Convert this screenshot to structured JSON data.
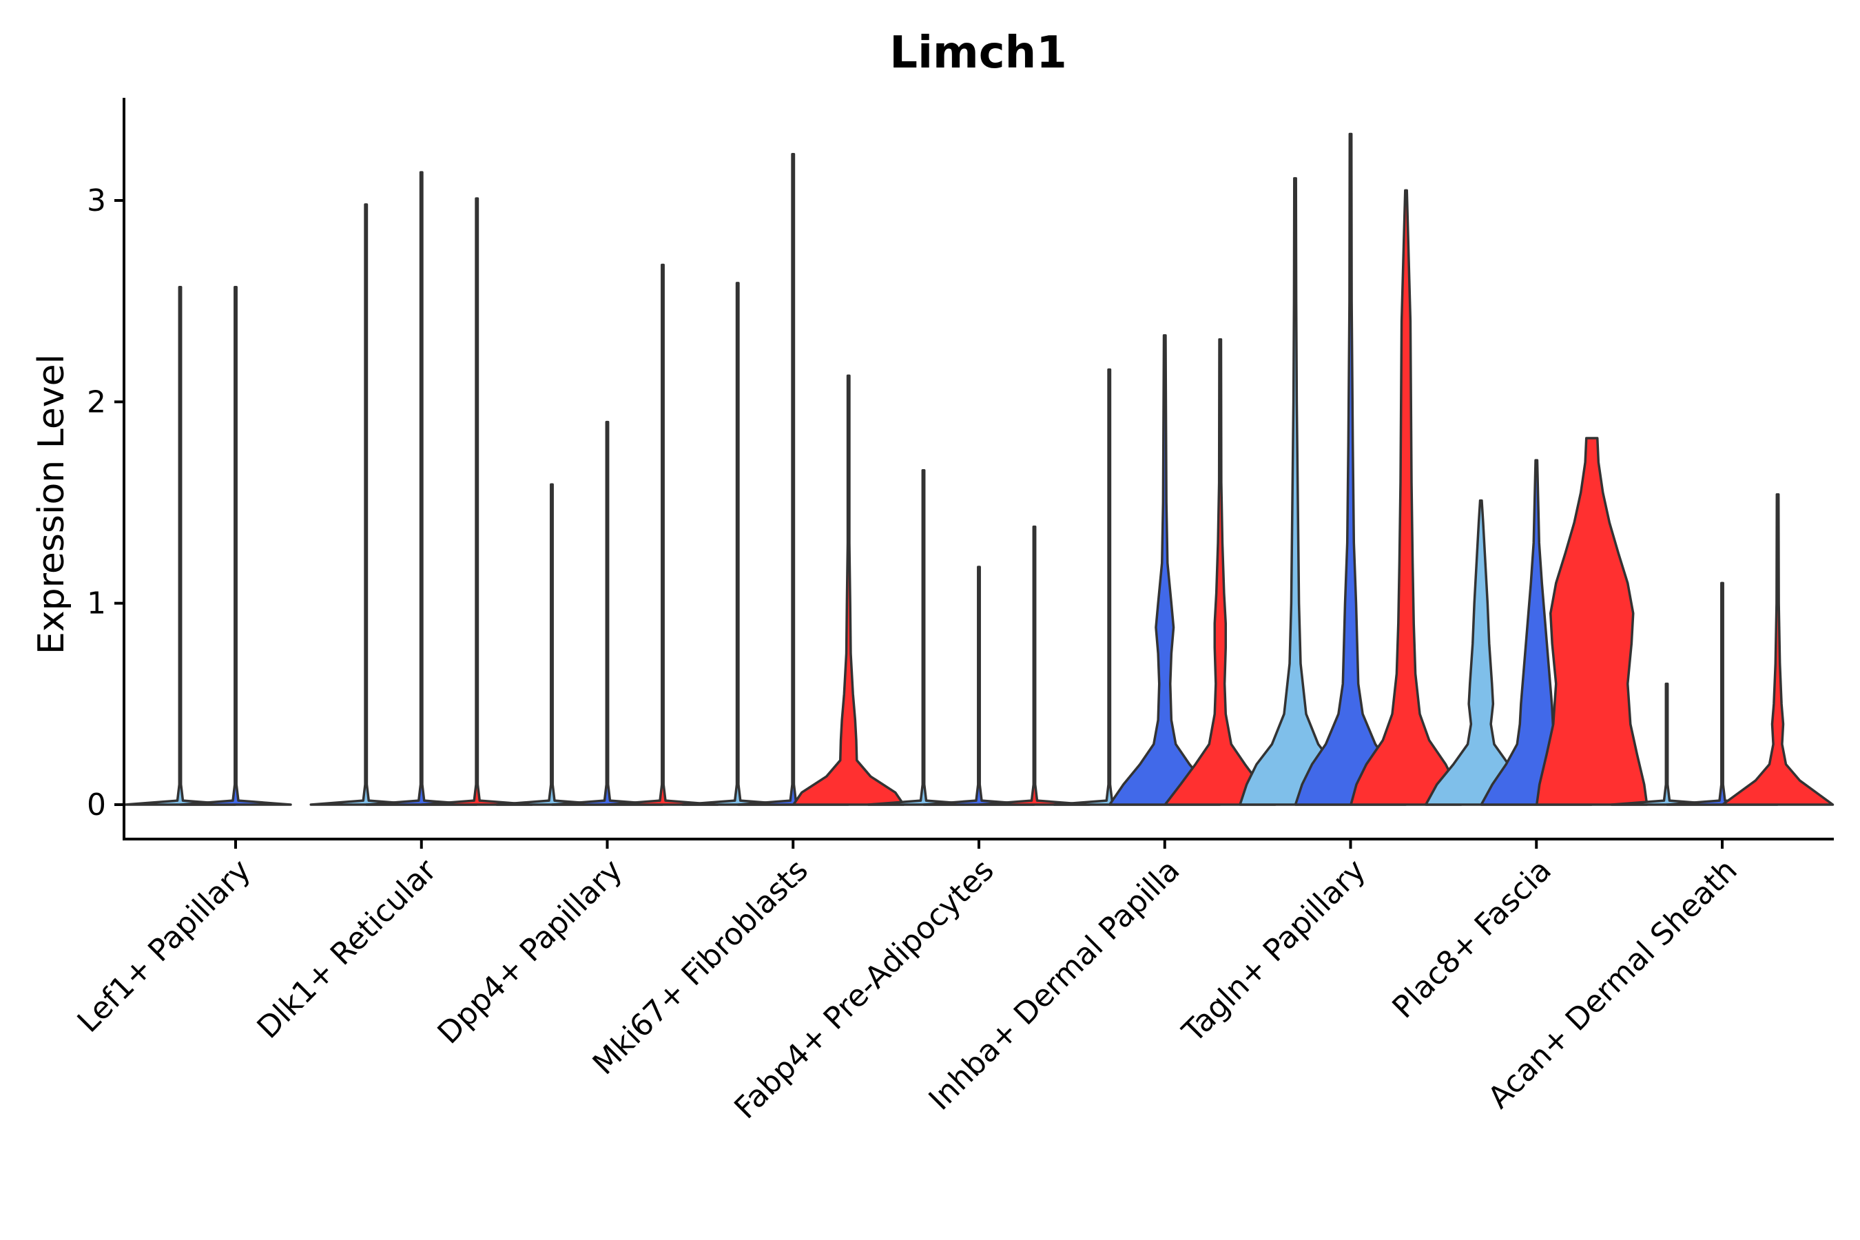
{
  "chart_data": {
    "type": "violin",
    "title": "Limch1",
    "ylabel": "Expression Level",
    "xlabel": "",
    "ylim": [
      -0.17,
      3.5
    ],
    "yticks": [
      0,
      1,
      2,
      3
    ],
    "categories": [
      "Lef1+ Papillary",
      "Dlk1+ Reticular",
      "Dpp4+ Papillary",
      "Mki67+ Fibroblasts",
      "Fabp4+ Pre-Adipocytes",
      "Inhba+ Dermal Papilla",
      "Tagln+ Papillary",
      "Plac8+ Fascia",
      "Acan+ Dermal Sheath"
    ],
    "groups": [
      {
        "name": "group-1",
        "color": "#7fbfea"
      },
      {
        "name": "group-2",
        "color": "#4169e9"
      },
      {
        "name": "group-3",
        "color": "#ff3030"
      }
    ],
    "violins": [
      {
        "category": 0,
        "group": 0,
        "max": 2.57,
        "profile": [
          [
            0,
            1.0
          ],
          [
            0.02,
            0.05
          ],
          [
            0.1,
            0.01
          ],
          [
            2.57,
            0.01
          ]
        ]
      },
      {
        "category": 0,
        "group": 1,
        "max": 2.57,
        "profile": [
          [
            0,
            1.0
          ],
          [
            0.02,
            0.05
          ],
          [
            0.1,
            0.01
          ],
          [
            2.57,
            0.01
          ]
        ]
      },
      {
        "category": 1,
        "group": 0,
        "max": 2.98,
        "profile": [
          [
            0,
            1.0
          ],
          [
            0.02,
            0.05
          ],
          [
            0.1,
            0.01
          ],
          [
            2.98,
            0.01
          ]
        ]
      },
      {
        "category": 1,
        "group": 1,
        "max": 3.14,
        "profile": [
          [
            0,
            1.0
          ],
          [
            0.02,
            0.05
          ],
          [
            0.1,
            0.01
          ],
          [
            3.14,
            0.01
          ]
        ]
      },
      {
        "category": 1,
        "group": 2,
        "max": 3.01,
        "profile": [
          [
            0,
            1.0
          ],
          [
            0.02,
            0.05
          ],
          [
            0.1,
            0.01
          ],
          [
            3.01,
            0.01
          ]
        ]
      },
      {
        "category": 2,
        "group": 0,
        "max": 1.59,
        "profile": [
          [
            0,
            1.0
          ],
          [
            0.02,
            0.05
          ],
          [
            0.1,
            0.01
          ],
          [
            1.59,
            0.01
          ]
        ]
      },
      {
        "category": 2,
        "group": 1,
        "max": 1.9,
        "profile": [
          [
            0,
            1.0
          ],
          [
            0.02,
            0.05
          ],
          [
            0.1,
            0.01
          ],
          [
            1.9,
            0.01
          ]
        ]
      },
      {
        "category": 2,
        "group": 2,
        "max": 2.68,
        "profile": [
          [
            0,
            1.0
          ],
          [
            0.02,
            0.05
          ],
          [
            0.1,
            0.01
          ],
          [
            2.68,
            0.01
          ]
        ]
      },
      {
        "category": 3,
        "group": 0,
        "max": 2.59,
        "profile": [
          [
            0,
            1.0
          ],
          [
            0.02,
            0.05
          ],
          [
            0.1,
            0.01
          ],
          [
            2.59,
            0.01
          ]
        ]
      },
      {
        "category": 3,
        "group": 1,
        "max": 3.23,
        "profile": [
          [
            0,
            1.0
          ],
          [
            0.02,
            0.05
          ],
          [
            0.1,
            0.01
          ],
          [
            3.23,
            0.01
          ]
        ]
      },
      {
        "category": 3,
        "group": 2,
        "max": 2.13,
        "profile": [
          [
            0,
            1.0
          ],
          [
            0.06,
            0.85
          ],
          [
            0.14,
            0.4
          ],
          [
            0.22,
            0.15
          ],
          [
            0.32,
            0.14
          ],
          [
            0.42,
            0.12
          ],
          [
            0.55,
            0.08
          ],
          [
            0.75,
            0.04
          ],
          [
            1.0,
            0.03
          ],
          [
            1.3,
            0.01
          ],
          [
            2.13,
            0.01
          ]
        ]
      },
      {
        "category": 4,
        "group": 0,
        "max": 1.66,
        "profile": [
          [
            0,
            1.0
          ],
          [
            0.02,
            0.05
          ],
          [
            0.1,
            0.01
          ],
          [
            1.66,
            0.01
          ]
        ]
      },
      {
        "category": 4,
        "group": 1,
        "max": 1.18,
        "profile": [
          [
            0,
            1.0
          ],
          [
            0.02,
            0.05
          ],
          [
            0.1,
            0.01
          ],
          [
            1.18,
            0.01
          ]
        ]
      },
      {
        "category": 4,
        "group": 2,
        "max": 1.38,
        "profile": [
          [
            0,
            1.0
          ],
          [
            0.02,
            0.05
          ],
          [
            0.1,
            0.01
          ],
          [
            1.38,
            0.01
          ]
        ]
      },
      {
        "category": 5,
        "group": 0,
        "max": 2.16,
        "profile": [
          [
            0,
            1.0
          ],
          [
            0.02,
            0.05
          ],
          [
            0.1,
            0.01
          ],
          [
            2.16,
            0.01
          ]
        ]
      },
      {
        "category": 5,
        "group": 1,
        "max": 2.33,
        "profile": [
          [
            0,
            1.0
          ],
          [
            0.1,
            0.75
          ],
          [
            0.2,
            0.45
          ],
          [
            0.3,
            0.2
          ],
          [
            0.42,
            0.12
          ],
          [
            0.6,
            0.1
          ],
          [
            0.75,
            0.12
          ],
          [
            0.88,
            0.16
          ],
          [
            1.0,
            0.12
          ],
          [
            1.2,
            0.05
          ],
          [
            1.5,
            0.03
          ],
          [
            2.33,
            0.01
          ]
        ]
      },
      {
        "category": 5,
        "group": 2,
        "max": 2.31,
        "profile": [
          [
            0,
            1.0
          ],
          [
            0.1,
            0.72
          ],
          [
            0.2,
            0.45
          ],
          [
            0.3,
            0.2
          ],
          [
            0.45,
            0.1
          ],
          [
            0.6,
            0.08
          ],
          [
            0.78,
            0.1
          ],
          [
            0.9,
            0.1
          ],
          [
            1.05,
            0.07
          ],
          [
            1.3,
            0.04
          ],
          [
            1.6,
            0.02
          ],
          [
            2.31,
            0.01
          ]
        ]
      },
      {
        "category": 6,
        "group": 0,
        "max": 3.11,
        "profile": [
          [
            0,
            1.0
          ],
          [
            0.1,
            0.88
          ],
          [
            0.2,
            0.7
          ],
          [
            0.3,
            0.42
          ],
          [
            0.45,
            0.2
          ],
          [
            0.7,
            0.1
          ],
          [
            1.0,
            0.07
          ],
          [
            1.5,
            0.05
          ],
          [
            2.0,
            0.03
          ],
          [
            2.5,
            0.02
          ],
          [
            3.11,
            0.01
          ]
        ]
      },
      {
        "category": 6,
        "group": 1,
        "max": 3.33,
        "profile": [
          [
            0,
            1.0
          ],
          [
            0.1,
            0.88
          ],
          [
            0.2,
            0.7
          ],
          [
            0.3,
            0.45
          ],
          [
            0.45,
            0.22
          ],
          [
            0.6,
            0.14
          ],
          [
            0.8,
            0.12
          ],
          [
            1.0,
            0.1
          ],
          [
            1.3,
            0.06
          ],
          [
            1.8,
            0.04
          ],
          [
            2.5,
            0.02
          ],
          [
            3.33,
            0.01
          ]
        ]
      },
      {
        "category": 6,
        "group": 2,
        "max": 3.05,
        "profile": [
          [
            0,
            1.0
          ],
          [
            0.1,
            0.9
          ],
          [
            0.2,
            0.72
          ],
          [
            0.32,
            0.42
          ],
          [
            0.45,
            0.25
          ],
          [
            0.65,
            0.17
          ],
          [
            0.9,
            0.14
          ],
          [
            1.2,
            0.12
          ],
          [
            1.6,
            0.1
          ],
          [
            2.0,
            0.09
          ],
          [
            2.4,
            0.08
          ],
          [
            2.7,
            0.05
          ],
          [
            3.05,
            0.01
          ]
        ]
      },
      {
        "category": 7,
        "group": 0,
        "max": 1.51,
        "profile": [
          [
            0,
            1.0
          ],
          [
            0.1,
            0.8
          ],
          [
            0.2,
            0.5
          ],
          [
            0.3,
            0.24
          ],
          [
            0.4,
            0.18
          ],
          [
            0.5,
            0.22
          ],
          [
            0.6,
            0.2
          ],
          [
            0.8,
            0.15
          ],
          [
            1.0,
            0.12
          ],
          [
            1.2,
            0.08
          ],
          [
            1.4,
            0.04
          ],
          [
            1.51,
            0.01
          ]
        ]
      },
      {
        "category": 7,
        "group": 1,
        "max": 1.71,
        "profile": [
          [
            0,
            1.0
          ],
          [
            0.1,
            0.8
          ],
          [
            0.2,
            0.55
          ],
          [
            0.3,
            0.35
          ],
          [
            0.4,
            0.3
          ],
          [
            0.5,
            0.28
          ],
          [
            0.7,
            0.22
          ],
          [
            0.9,
            0.16
          ],
          [
            1.1,
            0.1
          ],
          [
            1.3,
            0.05
          ],
          [
            1.71,
            0.01
          ]
        ]
      },
      {
        "category": 7,
        "group": 2,
        "max": 1.82,
        "profile": [
          [
            0,
            1.0
          ],
          [
            0.1,
            0.95
          ],
          [
            0.25,
            0.82
          ],
          [
            0.4,
            0.7
          ],
          [
            0.6,
            0.65
          ],
          [
            0.8,
            0.72
          ],
          [
            0.95,
            0.75
          ],
          [
            1.1,
            0.65
          ],
          [
            1.25,
            0.48
          ],
          [
            1.4,
            0.32
          ],
          [
            1.55,
            0.2
          ],
          [
            1.7,
            0.12
          ],
          [
            1.82,
            0.1
          ]
        ]
      },
      {
        "category": 8,
        "group": 0,
        "max": 0.6,
        "profile": [
          [
            0,
            1.0
          ],
          [
            0.02,
            0.05
          ],
          [
            0.1,
            0.01
          ],
          [
            0.6,
            0.01
          ]
        ]
      },
      {
        "category": 8,
        "group": 1,
        "max": 1.1,
        "profile": [
          [
            0,
            1.0
          ],
          [
            0.02,
            0.05
          ],
          [
            0.1,
            0.01
          ],
          [
            1.1,
            0.01
          ]
        ]
      },
      {
        "category": 8,
        "group": 2,
        "max": 1.54,
        "profile": [
          [
            0,
            1.0
          ],
          [
            0.05,
            0.75
          ],
          [
            0.12,
            0.4
          ],
          [
            0.2,
            0.15
          ],
          [
            0.3,
            0.08
          ],
          [
            0.4,
            0.1
          ],
          [
            0.5,
            0.07
          ],
          [
            0.7,
            0.04
          ],
          [
            1.0,
            0.02
          ],
          [
            1.54,
            0.01
          ]
        ]
      }
    ]
  }
}
